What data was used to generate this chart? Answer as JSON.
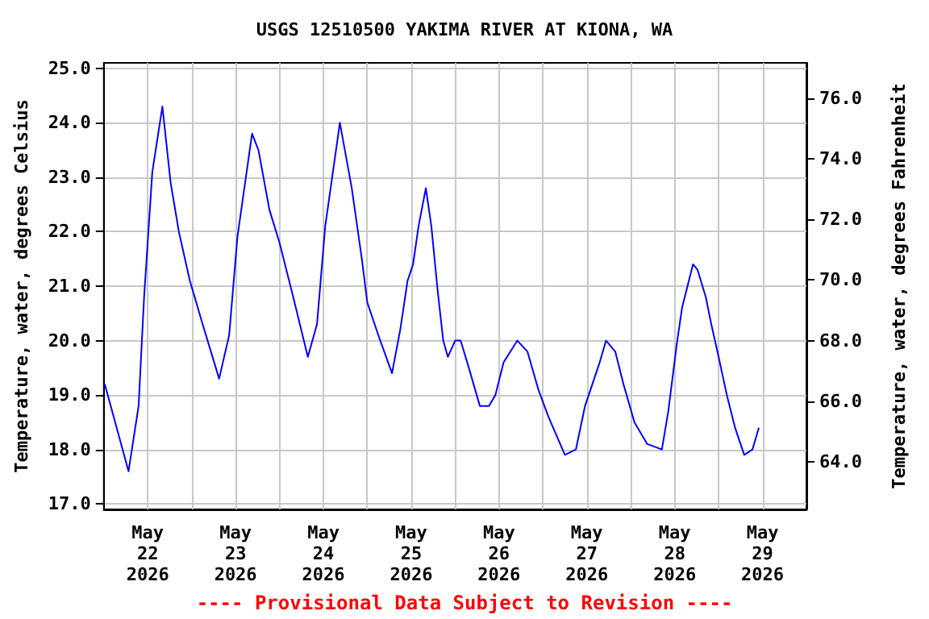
{
  "chart_data": {
    "type": "line",
    "title": "USGS 12510500 YAKIMA RIVER AT KIONA, WA",
    "ylabel": "Temperature, water, degrees Celsius",
    "y2label": "Temperature, water, degrees Fahrenheit",
    "annotations": [
      "---- Provisional Data Subject to Revision ----"
    ],
    "x": [
      "2026-05-22T00:15",
      "2026-05-22T06:45",
      "2026-05-22T09:30",
      "2026-05-22T11:00",
      "2026-05-22T13:15",
      "2026-05-22T16:00",
      "2026-05-22T18:15",
      "2026-05-22T20:30",
      "2026-05-22T23:30",
      "2026-05-23T03:00",
      "2026-05-23T07:30",
      "2026-05-23T10:15",
      "2026-05-23T12:30",
      "2026-05-23T16:30",
      "2026-05-23T18:15",
      "2026-05-23T21:15",
      "2026-05-24T00:00",
      "2026-05-24T03:45",
      "2026-05-24T07:45",
      "2026-05-24T10:15",
      "2026-05-24T12:30",
      "2026-05-24T16:30",
      "2026-05-24T19:45",
      "2026-05-24T22:30",
      "2026-05-25T00:00",
      "2026-05-25T03:00",
      "2026-05-25T06:45",
      "2026-05-25T09:00",
      "2026-05-25T11:00",
      "2026-05-25T12:30",
      "2026-05-25T14:00",
      "2026-05-25T16:00",
      "2026-05-25T17:30",
      "2026-05-25T19:15",
      "2026-05-25T20:45",
      "2026-05-25T22:00",
      "2026-05-26T00:00",
      "2026-05-26T01:30",
      "2026-05-26T03:45",
      "2026-05-26T06:45",
      "2026-05-26T09:15",
      "2026-05-26T11:00",
      "2026-05-26T13:15",
      "2026-05-26T17:00",
      "2026-05-26T19:45",
      "2026-05-26T22:45",
      "2026-05-27T01:30",
      "2026-05-27T06:00",
      "2026-05-27T09:00",
      "2026-05-27T11:30",
      "2026-05-27T14:00",
      "2026-05-27T15:30",
      "2026-05-27T17:15",
      "2026-05-27T19:45",
      "2026-05-27T22:00",
      "2026-05-28T01:00",
      "2026-05-28T04:30",
      "2026-05-28T08:30",
      "2026-05-28T10:15",
      "2026-05-28T12:30",
      "2026-05-28T14:00",
      "2026-05-28T17:00",
      "2026-05-28T18:15",
      "2026-05-28T20:30",
      "2026-05-28T22:00",
      "2026-05-29T00:00",
      "2026-05-29T02:15",
      "2026-05-29T04:30",
      "2026-05-29T07:00",
      "2026-05-29T09:15",
      "2026-05-29T11:00"
    ],
    "series": [
      {
        "color": "#0000ff",
        "values": [
          19.2,
          17.6,
          18.8,
          20.8,
          23.1,
          24.3,
          22.9,
          22.0,
          21.1,
          20.3,
          19.3,
          20.1,
          21.9,
          23.8,
          23.5,
          22.4,
          21.8,
          20.8,
          19.7,
          20.3,
          22.1,
          24.0,
          22.8,
          21.5,
          20.7,
          20.1,
          19.4,
          20.2,
          21.1,
          21.4,
          22.1,
          22.8,
          22.1,
          20.9,
          20.0,
          19.7,
          20.0,
          20.0,
          19.5,
          18.8,
          18.8,
          19.0,
          19.6,
          20.0,
          19.8,
          19.1,
          18.6,
          17.9,
          18.0,
          18.8,
          19.3,
          19.6,
          20.0,
          19.8,
          19.2,
          18.5,
          18.1,
          18.0,
          18.7,
          19.9,
          20.6,
          21.4,
          21.3,
          20.8,
          20.3,
          19.7,
          19.0,
          18.4,
          17.9,
          18.0,
          18.4
        ]
      }
    ],
    "xlim": [
      "2026-05-22T00:00",
      "2026-05-30T00:00"
    ],
    "xticks": [
      {
        "value": "2026-05-22T00:00",
        "label": null
      },
      {
        "value": "2026-05-22T12:00",
        "label": "May\n22\n2026"
      },
      {
        "value": "2026-05-23T00:00",
        "label": null
      },
      {
        "value": "2026-05-23T12:00",
        "label": "May\n23\n2026"
      },
      {
        "value": "2026-05-24T00:00",
        "label": null
      },
      {
        "value": "2026-05-24T12:00",
        "label": "May\n24\n2026"
      },
      {
        "value": "2026-05-25T00:00",
        "label": null
      },
      {
        "value": "2026-05-25T12:00",
        "label": "May\n25\n2026"
      },
      {
        "value": "2026-05-26T00:00",
        "label": null
      },
      {
        "value": "2026-05-26T12:00",
        "label": "May\n26\n2026"
      },
      {
        "value": "2026-05-27T00:00",
        "label": null
      },
      {
        "value": "2026-05-27T12:00",
        "label": "May\n27\n2026"
      },
      {
        "value": "2026-05-28T00:00",
        "label": null
      },
      {
        "value": "2026-05-28T12:00",
        "label": "May\n28\n2026"
      },
      {
        "value": "2026-05-29T00:00",
        "label": null
      },
      {
        "value": "2026-05-29T12:00",
        "label": "May\n29\n2026"
      },
      {
        "value": "2026-05-30T00:00",
        "label": null
      }
    ],
    "ylim": [
      16.9,
      25.1
    ],
    "yticks": [
      {
        "value": 17,
        "label": "17.0"
      },
      {
        "value": 18,
        "label": "18.0"
      },
      {
        "value": 19,
        "label": "19.0"
      },
      {
        "value": 20,
        "label": "20.0"
      },
      {
        "value": 21,
        "label": "21.0"
      },
      {
        "value": 22,
        "label": "22.0"
      },
      {
        "value": 23,
        "label": "23.0"
      },
      {
        "value": 24,
        "label": "24.0"
      },
      {
        "value": 25,
        "label": "25.0"
      }
    ],
    "y2lim": [
      62.42,
      77.18
    ],
    "y2ticks": [
      {
        "value": 64,
        "label": "64.0"
      },
      {
        "value": 66,
        "label": "66.0"
      },
      {
        "value": 68,
        "label": "68.0"
      },
      {
        "value": 70,
        "label": "70.0"
      },
      {
        "value": 72,
        "label": "72.0"
      },
      {
        "value": 74,
        "label": "74.0"
      },
      {
        "value": 76,
        "label": "76.0"
      }
    ],
    "grid": true,
    "marker": "none",
    "line_style": "solid"
  }
}
